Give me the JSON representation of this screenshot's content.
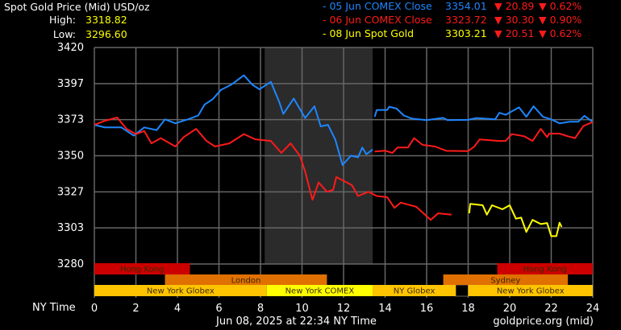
{
  "header": {
    "title": "Spot Gold Price (Mid) USD/oz",
    "high_label": "High:",
    "high_value": "3318.82",
    "low_label": "Low:",
    "low_value": "3296.60"
  },
  "legend": [
    {
      "label": "- 05 Jun COMEX Close",
      "price": "3354.01",
      "change": "▼ 20.89",
      "pct": "▼ 0.62%",
      "color": "#1e86ff"
    },
    {
      "label": "- 06 Jun COMEX Close",
      "price": "3323.72",
      "change": "▼ 30.30",
      "pct": "▼ 0.90%",
      "color": "#ff1a1a"
    },
    {
      "label": "- 08 Jun Spot Gold",
      "price": "3303.21",
      "change": "▼ 20.51",
      "pct": "▼ 0.62%",
      "color": "#ffff00"
    }
  ],
  "colors": {
    "down": "#ff1a1a",
    "text": "#ffffff",
    "grid": "#666666",
    "shade": "#2b2b2b"
  },
  "footer": {
    "x_axis_label": "NY Time",
    "timestamp": "Jun 08, 2025 at 22:34 NY Time",
    "source": "goldprice.org (mid)"
  },
  "chart_data": {
    "type": "line",
    "xlabel": "NY Time",
    "xlim": [
      0,
      24
    ],
    "ylim": [
      3280,
      3420
    ],
    "x_ticks": [
      "0",
      "2",
      "4",
      "6",
      "8",
      "10",
      "12",
      "14",
      "16",
      "18",
      "20",
      "22",
      "24"
    ],
    "y_ticks": [
      "3420",
      "3397",
      "3373",
      "3350",
      "3327",
      "3303",
      "3280"
    ],
    "grid": true,
    "highlight_range": [
      8.2,
      13.4
    ],
    "sessions": [
      {
        "label": "Hong Kong",
        "row": 0,
        "start": 0,
        "end": 4.6,
        "color": "#cc0000"
      },
      {
        "label": "Hong Kong",
        "row": 0,
        "start": 19.4,
        "end": 24,
        "color": "#cc0000"
      },
      {
        "label": "London",
        "row": 1,
        "start": 3.4,
        "end": 11.2,
        "color": "#e07000"
      },
      {
        "label": "Sydney",
        "row": 1,
        "start": 16.8,
        "end": 22.8,
        "color": "#e07000"
      },
      {
        "label": "New York Globex",
        "row": 2,
        "start": 0,
        "end": 8.3,
        "color": "#ffc400"
      },
      {
        "label": "New York COMEX",
        "row": 2,
        "start": 8.3,
        "end": 13.4,
        "color": "#ffff00"
      },
      {
        "label": "NY Globex",
        "row": 2,
        "start": 13.4,
        "end": 17.4,
        "color": "#ffc400"
      },
      {
        "label": "New York Globex",
        "row": 2,
        "start": 18.0,
        "end": 24,
        "color": "#ffc400"
      }
    ],
    "series": [
      {
        "name": "05 Jun COMEX Close",
        "color": "#1e86ff",
        "segments": [
          [
            [
              0,
              3370
            ],
            [
              0.5,
              3368.3
            ],
            [
              1.3,
              3368.3
            ],
            [
              1.9,
              3363
            ],
            [
              2.4,
              3368.3
            ],
            [
              3,
              3366.6
            ],
            [
              3.4,
              3373.5
            ],
            [
              3.9,
              3371
            ],
            [
              4.5,
              3373.5
            ],
            [
              5,
              3376
            ],
            [
              5.3,
              3383
            ],
            [
              5.7,
              3386.6
            ],
            [
              6.1,
              3392.6
            ],
            [
              6.6,
              3396
            ],
            [
              7.2,
              3402
            ],
            [
              7.6,
              3396
            ],
            [
              7.95,
              3393
            ],
            [
              8.5,
              3397.8
            ],
            [
              8.9,
              3384.8
            ],
            [
              9.1,
              3377
            ],
            [
              9.6,
              3387
            ],
            [
              10.15,
              3374.4
            ],
            [
              10.6,
              3382
            ],
            [
              10.9,
              3369
            ],
            [
              11.25,
              3370
            ],
            [
              11.6,
              3360.5
            ],
            [
              11.95,
              3344
            ],
            [
              12.35,
              3350
            ],
            [
              12.7,
              3349
            ],
            [
              12.9,
              3355.3
            ],
            [
              13.1,
              3351
            ],
            [
              13.4,
              3354
            ]
          ],
          [
            [
              13.5,
              3375.2
            ],
            [
              13.6,
              3379.6
            ],
            [
              14.1,
              3379.6
            ],
            [
              14.2,
              3381.7
            ],
            [
              14.55,
              3380.5
            ],
            [
              14.9,
              3376
            ],
            [
              15.3,
              3374
            ],
            [
              16,
              3373
            ],
            [
              16.8,
              3374.5
            ],
            [
              17,
              3373
            ],
            [
              18,
              3373.2
            ],
            [
              18.4,
              3374.4
            ],
            [
              19.3,
              3373.5
            ],
            [
              19.5,
              3377.8
            ],
            [
              19.8,
              3376.5
            ],
            [
              20.45,
              3381.3
            ],
            [
              20.8,
              3375.2
            ],
            [
              21.15,
              3382
            ],
            [
              21.6,
              3375.2
            ],
            [
              22,
              3373.5
            ],
            [
              22.4,
              3371
            ],
            [
              22.9,
              3372
            ],
            [
              23.3,
              3372
            ],
            [
              23.6,
              3375.8
            ],
            [
              24,
              3371.8
            ]
          ]
        ]
      },
      {
        "name": "06 Jun COMEX Close",
        "color": "#ff1a1a",
        "segments": [
          [
            [
              0,
              3370
            ],
            [
              0.5,
              3372.6
            ],
            [
              1.1,
              3374.7
            ],
            [
              1.55,
              3367.4
            ],
            [
              2,
              3364
            ],
            [
              2.4,
              3366
            ],
            [
              2.75,
              3358
            ],
            [
              3.2,
              3361.4
            ],
            [
              3.9,
              3356
            ],
            [
              4.3,
              3362
            ],
            [
              4.9,
              3367.4
            ],
            [
              5.4,
              3359.6
            ],
            [
              5.8,
              3356
            ],
            [
              6.5,
              3358
            ],
            [
              7.2,
              3364
            ],
            [
              7.75,
              3360.6
            ],
            [
              8.5,
              3359.6
            ],
            [
              9,
              3351.8
            ],
            [
              9.45,
              3358
            ],
            [
              9.9,
              3350
            ],
            [
              10.15,
              3339.7
            ],
            [
              10.5,
              3321.5
            ],
            [
              10.8,
              3332.7
            ],
            [
              11.2,
              3326.7
            ],
            [
              11.5,
              3328
            ],
            [
              11.65,
              3336.2
            ],
            [
              12.4,
              3331
            ],
            [
              12.7,
              3324
            ],
            [
              13.2,
              3326.7
            ],
            [
              13.6,
              3324
            ],
            [
              14.1,
              3323.2
            ],
            [
              14.45,
              3316.3
            ],
            [
              14.75,
              3319.7
            ],
            [
              15.5,
              3317
            ],
            [
              16.2,
              3308.5
            ],
            [
              16.55,
              3312.8
            ],
            [
              17.2,
              3311.9
            ]
          ],
          [
            [
              13.5,
              3352.7
            ],
            [
              14,
              3353.3
            ],
            [
              14.35,
              3351.8
            ],
            [
              14.6,
              3355.3
            ],
            [
              15.1,
              3355.3
            ],
            [
              15.4,
              3361.4
            ],
            [
              15.8,
              3357
            ],
            [
              16.4,
              3356
            ],
            [
              16.95,
              3353.2
            ],
            [
              18,
              3353
            ],
            [
              18.3,
              3356
            ],
            [
              18.55,
              3360.5
            ],
            [
              19.5,
              3359.6
            ],
            [
              19.8,
              3359.6
            ],
            [
              20.1,
              3364
            ],
            [
              20.7,
              3362.6
            ],
            [
              21.1,
              3359.6
            ],
            [
              21.5,
              3367.4
            ],
            [
              21.8,
              3362
            ],
            [
              21.9,
              3364.3
            ],
            [
              22.4,
              3364.3
            ],
            [
              22.8,
              3362.6
            ],
            [
              23.15,
              3361.4
            ],
            [
              23.55,
              3369.2
            ],
            [
              24,
              3371.8
            ]
          ]
        ]
      },
      {
        "name": "08 Jun Spot Gold",
        "color": "#ffff00",
        "segments": [
          [
            [
              18.05,
              3312.8
            ],
            [
              18.1,
              3318.9
            ],
            [
              18.7,
              3318
            ],
            [
              18.9,
              3311.9
            ],
            [
              19.15,
              3318
            ],
            [
              19.65,
              3315.4
            ],
            [
              20,
              3318
            ],
            [
              20.3,
              3309.3
            ],
            [
              20.55,
              3310
            ],
            [
              20.8,
              3300.7
            ],
            [
              21.1,
              3308.5
            ],
            [
              21.5,
              3305.8
            ],
            [
              21.8,
              3306.5
            ],
            [
              22,
              3298
            ],
            [
              22.25,
              3298
            ],
            [
              22.4,
              3306.7
            ],
            [
              22.5,
              3304
            ]
          ]
        ]
      }
    ]
  }
}
